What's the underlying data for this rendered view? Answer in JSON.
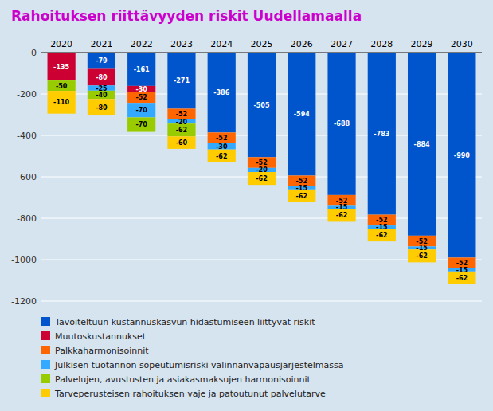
{
  "chart_data": {
    "type": "bar",
    "stacked": true,
    "data_labels": true,
    "grid": true,
    "legend": "bottom",
    "title": "Rahoituksen riittävyyden riskit Uudellamaalla",
    "categories": [
      "2020",
      "2021",
      "2022",
      "2023",
      "2024",
      "2025",
      "2026",
      "2027",
      "2028",
      "2029",
      "2030"
    ],
    "series": [
      {
        "name": "Tavoiteltuun kustannuskasvun hidastumiseen liittyvät riskit",
        "color": "#0055cc",
        "values": [
          0,
          -79,
          -161,
          -271,
          -386,
          -505,
          -594,
          -688,
          -783,
          -884,
          -990
        ]
      },
      {
        "name": "Muutoskustannukset",
        "color": "#cc0033",
        "values": [
          -135,
          -80,
          -30,
          0,
          0,
          0,
          0,
          0,
          0,
          0,
          0
        ]
      },
      {
        "name": "Palkkaharmonisoinnit",
        "color": "#ff6600",
        "values": [
          0,
          0,
          -52,
          -52,
          -52,
          -52,
          -52,
          -52,
          -52,
          -52,
          -52
        ]
      },
      {
        "name": "Julkisen tuotannon sopeutumisriski valinnanvapausjärjestelmässä",
        "color": "#33aaff",
        "values": [
          0,
          -25,
          -70,
          -20,
          -30,
          -20,
          -15,
          -15,
          -15,
          -15,
          -15
        ]
      },
      {
        "name": "Palvelujen, avustusten ja asiakasmaksujen harmonisoinnit",
        "color": "#99cc00",
        "values": [
          -50,
          -40,
          -70,
          -62,
          0,
          0,
          0,
          0,
          0,
          0,
          0
        ]
      },
      {
        "name": "Tarveperusteisen rahoituksen vaje ja patoutunut palvelutarve",
        "color": "#ffcc00",
        "values": [
          -110,
          -80,
          0,
          -60,
          -62,
          -62,
          -62,
          -62,
          -62,
          -62,
          -62
        ]
      }
    ],
    "ylim": [
      -1200,
      0
    ],
    "yticks": [
      0,
      -200,
      -400,
      -600,
      -800,
      -1000,
      -1200
    ]
  }
}
